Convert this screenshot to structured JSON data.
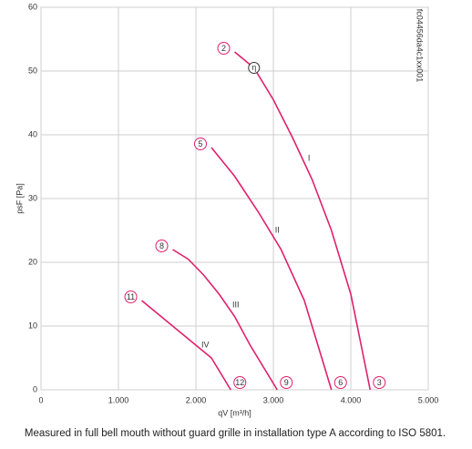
{
  "chart_data": {
    "type": "line",
    "xlabel": "qV [m³/h]",
    "ylabel": "psF [Pa]",
    "side_code": "fc04456da4c1xx001",
    "caption": "Measured in full bell mouth without guard grille in installation type A according to ISO 5801.",
    "efficiency_label": "η",
    "xlim": [
      0,
      5000
    ],
    "ylim": [
      0,
      60
    ],
    "xticks": [
      0,
      {
        "value": 1000,
        "label": "1.000"
      },
      {
        "value": 2000,
        "label": "2.000"
      },
      {
        "value": 3000,
        "label": "3.000"
      },
      {
        "value": 4000,
        "label": "4.000"
      },
      {
        "value": 5000,
        "label": "5.000"
      }
    ],
    "yticks": [
      0,
      10,
      20,
      30,
      40,
      50,
      60
    ],
    "grid": true,
    "series": [
      {
        "name": "I",
        "color": "#e0206b",
        "start_label": "2",
        "end_label": "3",
        "x": [
          2500,
          2750,
          3000,
          3250,
          3500,
          3750,
          4000,
          4250
        ],
        "values": [
          53,
          50.5,
          45.5,
          39.5,
          33,
          25,
          15,
          0
        ]
      },
      {
        "name": "II",
        "color": "#e0206b",
        "start_label": "5",
        "end_label": "6",
        "x": [
          2200,
          2500,
          2800,
          3100,
          3400,
          3750
        ],
        "values": [
          38,
          33.5,
          28,
          22,
          14,
          0
        ]
      },
      {
        "name": "III",
        "color": "#e0206b",
        "start_label": "8",
        "end_label": "9",
        "x": [
          1700,
          1900,
          2100,
          2300,
          2500,
          2700,
          3050
        ],
        "values": [
          22,
          20.5,
          18,
          15,
          11.5,
          7,
          0
        ]
      },
      {
        "name": "IV",
        "color": "#e0206b",
        "start_label": "11",
        "end_label": "12",
        "x": [
          1300,
          1800,
          2200,
          2450
        ],
        "values": [
          14,
          9,
          5,
          0
        ]
      }
    ]
  }
}
